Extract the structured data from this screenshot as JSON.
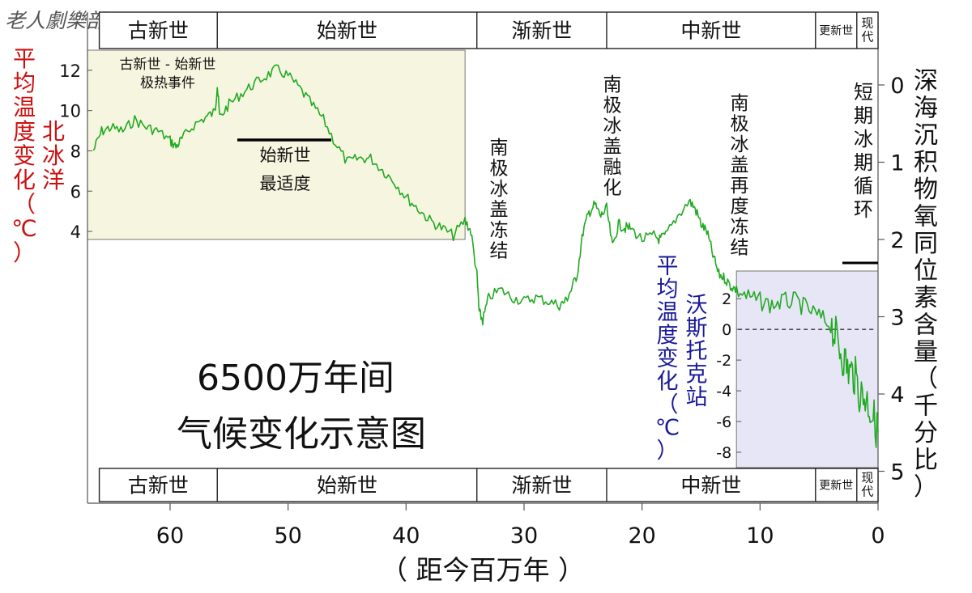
{
  "watermark": "老人劇樂部",
  "main_title": [
    "6500万年间",
    "气候变化示意图"
  ],
  "epochs": [
    {
      "name": "古新世",
      "start": 66,
      "end": 56
    },
    {
      "name": "始新世",
      "start": 56,
      "end": 34
    },
    {
      "name": "渐新世",
      "start": 34,
      "end": 23
    },
    {
      "name": "中新世",
      "start": 23,
      "end": 5.3
    },
    {
      "name": "更新世",
      "start": 5.3,
      "end": 1.8
    },
    {
      "name": "现代",
      "start": 1.8,
      "end": 0
    }
  ],
  "annotations": {
    "petm": [
      "古新世 - 始新世",
      "极热事件"
    ],
    "eocene_optimum": [
      "始新世",
      "最适度"
    ],
    "antarctic_freeze": [
      "南",
      "极",
      "冰",
      "盖",
      "冻",
      "结"
    ],
    "antarctic_melt": [
      "南",
      "极",
      "冰",
      "盖",
      "融",
      "化"
    ],
    "antarctic_refreeze": [
      "南",
      "极",
      "冰",
      "盖",
      "再",
      "度",
      "冻",
      "结"
    ],
    "short_ice_cycles": [
      "短",
      "期",
      "冰",
      "期",
      "循",
      "环"
    ]
  },
  "colors": {
    "line": "#22aa22",
    "arctic_label": "#cc1111",
    "vostok_label": "#1a1a99",
    "arctic_box": "#f6f6e0",
    "vostok_box": "#e6e6f6"
  },
  "chart_data": {
    "type": "line",
    "xlabel": "（ 距今百万年 ）",
    "x_ticks": [
      60,
      50,
      40,
      30,
      20,
      10,
      0
    ],
    "xlim": [
      67,
      0
    ],
    "y_right": {
      "label_chars": [
        "深",
        "海",
        "沉",
        "积",
        "物",
        "氧",
        "同",
        "位",
        "素",
        "含",
        "量",
        "（",
        "千",
        "分",
        "比",
        "）"
      ],
      "ticks": [
        0,
        1,
        2,
        3,
        4,
        5
      ],
      "ylim": [
        0,
        5
      ],
      "inverted": true
    },
    "arctic_inset": {
      "label_a": [
        "平",
        "均",
        "温",
        "度",
        "变",
        "化",
        "（",
        "℃",
        "）"
      ],
      "label_b": [
        "北",
        "冰",
        "洋"
      ],
      "ticks": [
        4,
        6,
        8,
        10,
        12
      ],
      "ylim": [
        3.6,
        13
      ],
      "xlim": [
        67,
        35
      ]
    },
    "vostok_inset": {
      "label_a": [
        "平",
        "均",
        "温",
        "度",
        "变",
        "化",
        "（",
        "℃",
        "）"
      ],
      "label_b": [
        "沃",
        "斯",
        "托",
        "克",
        "站"
      ],
      "ticks": [
        2,
        0,
        -2,
        -4,
        -6,
        -8
      ],
      "ylim": [
        -9,
        3.8
      ],
      "xlim": [
        12,
        0
      ]
    },
    "series": [
      {
        "name": "",
        "x": [
          66.5,
          65.8,
          65.0,
          64.0,
          63.0,
          62.0,
          61.0,
          60.0,
          59.5,
          59.0,
          58.0,
          57.0,
          56.2,
          56.0,
          55.8,
          55.0,
          54.0,
          53.0,
          52.0,
          51.0,
          50.0,
          49.0,
          48.0,
          47.0,
          46.0,
          45.0,
          44.0,
          43.0,
          42.0,
          41.0,
          40.0,
          39.0,
          38.0,
          37.0,
          36.0,
          35.0,
          34.5,
          34.0,
          33.8,
          33.5,
          33.0,
          32.0,
          31.0,
          30.0,
          29.0,
          28.0,
          27.0,
          26.5,
          26.0,
          25.5,
          25.0,
          24.5,
          24.0,
          23.5,
          23.0,
          22.5,
          22.0,
          21.5,
          21.0,
          20.0,
          19.0,
          18.5,
          18.0,
          17.0,
          16.0,
          15.5,
          15.0,
          14.5,
          14.0,
          13.5,
          13.0,
          12.5,
          12.0,
          11.0,
          10.0,
          9.0,
          8.0,
          7.0,
          6.0,
          5.0,
          4.0,
          3.5,
          3.0,
          2.5,
          2.0,
          1.5,
          1.0,
          0.5,
          0.0
        ],
        "y": [
          0.85,
          0.6,
          0.55,
          0.6,
          0.45,
          0.55,
          0.6,
          0.72,
          0.8,
          0.7,
          0.52,
          0.42,
          0.35,
          0.0,
          0.42,
          0.25,
          0.12,
          0.0,
          -0.1,
          -0.2,
          -0.12,
          0.05,
          0.25,
          0.45,
          0.75,
          1.0,
          0.95,
          0.95,
          1.1,
          1.25,
          1.45,
          1.6,
          1.75,
          1.85,
          1.95,
          1.75,
          1.9,
          2.45,
          2.95,
          3.05,
          2.75,
          2.65,
          2.75,
          2.8,
          2.75,
          2.8,
          2.85,
          2.8,
          2.65,
          2.45,
          1.9,
          1.65,
          1.55,
          1.7,
          1.6,
          2.1,
          1.8,
          1.85,
          1.85,
          2.0,
          1.95,
          2.0,
          1.95,
          1.7,
          1.5,
          1.6,
          1.8,
          1.9,
          2.2,
          2.45,
          2.5,
          2.6,
          2.65,
          2.75,
          2.8,
          2.85,
          2.8,
          2.8,
          2.9,
          3.0,
          3.1,
          3.3,
          3.5,
          3.7,
          3.75,
          4.0,
          4.05,
          4.25,
          4.5
        ]
      }
    ]
  }
}
